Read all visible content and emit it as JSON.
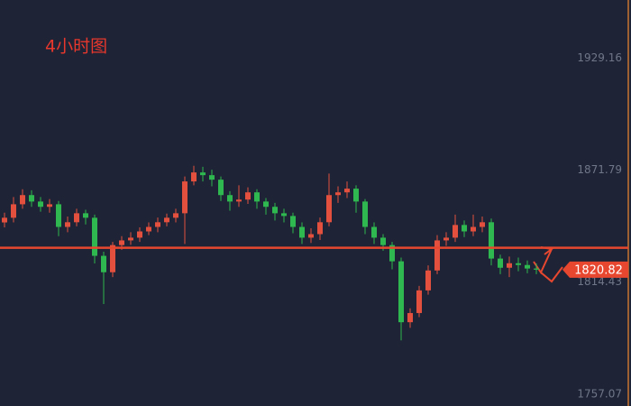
{
  "chart_data": {
    "type": "candlestick",
    "title": "4小时图",
    "ylim": [
      1751.0,
      1958.9
    ],
    "yticks": [
      1757.07,
      1814.43,
      1871.79,
      1929.16
    ],
    "up_color": "#e3503d",
    "down_color": "#2fb84f",
    "reference_line": 1832.0,
    "reference_color": "#e8472f",
    "last_price": 1820.82,
    "open": [
      1845.0,
      1847.4,
      1854.3,
      1859.0,
      1855.7,
      1853.0,
      1854.3,
      1842.7,
      1845.1,
      1849.7,
      1847.4,
      1827.9,
      1819.5,
      1833.4,
      1835.8,
      1837.2,
      1840.4,
      1842.7,
      1845.1,
      1847.4,
      1849.7,
      1866.0,
      1870.6,
      1869.2,
      1866.9,
      1859.0,
      1855.7,
      1856.7,
      1860.4,
      1855.7,
      1853.0,
      1849.7,
      1848.3,
      1842.7,
      1837.2,
      1839.0,
      1845.1,
      1859.0,
      1860.4,
      1862.3,
      1855.7,
      1842.7,
      1837.2,
      1833.4,
      1825.1,
      1793.9,
      1798.6,
      1810.2,
      1820.4,
      1835.8,
      1837.2,
      1843.7,
      1840.4,
      1842.7,
      1845.1,
      1826.5,
      1821.8,
      1824.1,
      1823.2,
      1821.4
    ],
    "high": [
      1850.0,
      1858.0,
      1862.0,
      1861.5,
      1858.0,
      1857.0,
      1856.0,
      1848.0,
      1852.0,
      1851.5,
      1849.0,
      1830.0,
      1835.0,
      1838.0,
      1840.0,
      1842.5,
      1845.0,
      1847.5,
      1849.5,
      1852.0,
      1868.5,
      1874.0,
      1873.5,
      1872.0,
      1868.5,
      1861.0,
      1864.0,
      1863.0,
      1862.0,
      1857.5,
      1855.0,
      1852.0,
      1850.0,
      1845.0,
      1842.0,
      1847.5,
      1870.0,
      1863.5,
      1866.0,
      1864.0,
      1857.0,
      1845.0,
      1839.0,
      1835.0,
      1827.0,
      1801.0,
      1812.5,
      1823.0,
      1838.5,
      1840.0,
      1849.0,
      1846.0,
      1849.0,
      1848.0,
      1847.0,
      1828.5,
      1827.5,
      1827.0,
      1825.5,
      1824.0
    ],
    "low": [
      1842.5,
      1845.0,
      1852.0,
      1853.0,
      1850.5,
      1850.0,
      1838.0,
      1840.0,
      1843.0,
      1844.0,
      1824.0,
      1803.2,
      1817.0,
      1831.0,
      1833.5,
      1835.0,
      1838.5,
      1840.0,
      1843.0,
      1845.0,
      1834.0,
      1864.0,
      1866.0,
      1863.5,
      1856.0,
      1851.0,
      1853.0,
      1854.5,
      1852.0,
      1849.0,
      1846.0,
      1845.0,
      1839.5,
      1834.0,
      1834.5,
      1836.0,
      1843.0,
      1855.0,
      1857.5,
      1850.0,
      1839.0,
      1834.0,
      1830.5,
      1821.0,
      1784.6,
      1791.0,
      1796.5,
      1808.0,
      1818.5,
      1833.0,
      1835.0,
      1837.5,
      1838.0,
      1840.0,
      1823.0,
      1818.5,
      1817.0,
      1820.0,
      1819.0,
      1818.5
    ],
    "close": [
      1847.4,
      1854.3,
      1859.0,
      1855.7,
      1853.0,
      1854.3,
      1842.7,
      1845.1,
      1849.7,
      1847.4,
      1827.9,
      1819.5,
      1833.4,
      1835.8,
      1837.2,
      1840.4,
      1842.7,
      1845.1,
      1847.4,
      1849.7,
      1866.0,
      1870.6,
      1869.2,
      1866.9,
      1859.0,
      1855.7,
      1856.7,
      1860.4,
      1855.7,
      1853.0,
      1849.7,
      1848.3,
      1842.7,
      1837.2,
      1839.0,
      1845.1,
      1859.0,
      1860.4,
      1862.3,
      1855.7,
      1842.7,
      1837.2,
      1833.4,
      1825.1,
      1793.9,
      1798.6,
      1810.2,
      1820.4,
      1835.8,
      1837.2,
      1843.7,
      1840.4,
      1842.7,
      1845.1,
      1826.5,
      1821.8,
      1824.1,
      1823.2,
      1821.4,
      1820.82
    ]
  }
}
